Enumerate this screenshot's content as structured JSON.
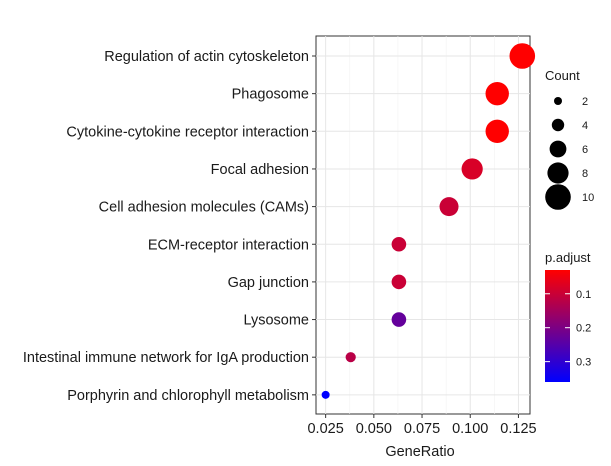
{
  "chart_data": {
    "type": "scatter",
    "title": "",
    "xlabel": "GeneRatio",
    "ylabel": "",
    "xlim": [
      0.02,
      0.131
    ],
    "x_ticks": [
      0.025,
      0.05,
      0.075,
      0.1,
      0.125
    ],
    "x_tick_labels": [
      "0.025",
      "0.050",
      "0.075",
      "0.100",
      "0.125"
    ],
    "grid": true,
    "legend_placement": "right",
    "categories": [
      "Regulation of actin cytoskeleton",
      "Phagosome",
      "Cytokine-cytokine receptor interaction",
      "Focal adhesion",
      "Cell adhesion molecules (CAMs)",
      "ECM-receptor interaction",
      "Gap junction",
      "Lysosome",
      "Intestinal immune network for IgA production",
      "Porphyrin and chlorophyll metabolism"
    ],
    "points": [
      {
        "category": "Regulation of actin cytoskeleton",
        "gene_ratio": 0.127,
        "count": 10,
        "p_adjust": 0.03
      },
      {
        "category": "Phagosome",
        "gene_ratio": 0.114,
        "count": 9,
        "p_adjust": 0.03
      },
      {
        "category": "Cytokine-cytokine receptor interaction",
        "gene_ratio": 0.114,
        "count": 9,
        "p_adjust": 0.03
      },
      {
        "category": "Focal adhesion",
        "gene_ratio": 0.101,
        "count": 8,
        "p_adjust": 0.08
      },
      {
        "category": "Cell adhesion molecules (CAMs)",
        "gene_ratio": 0.089,
        "count": 7,
        "p_adjust": 0.1
      },
      {
        "category": "ECM-receptor interaction",
        "gene_ratio": 0.063,
        "count": 5,
        "p_adjust": 0.1
      },
      {
        "category": "Gap junction",
        "gene_ratio": 0.063,
        "count": 5,
        "p_adjust": 0.1
      },
      {
        "category": "Lysosome",
        "gene_ratio": 0.063,
        "count": 5,
        "p_adjust": 0.23
      },
      {
        "category": "Intestinal immune network for IgA production",
        "gene_ratio": 0.038,
        "count": 3,
        "p_adjust": 0.12
      },
      {
        "category": "Porphyrin and chlorophyll metabolism",
        "gene_ratio": 0.025,
        "count": 2,
        "p_adjust": 0.36
      }
    ],
    "size_legend": {
      "title": "Count",
      "values": [
        2,
        4,
        6,
        8,
        10
      ],
      "labels": [
        "2",
        "4",
        "6",
        "8",
        "10"
      ]
    },
    "color_legend": {
      "title": "p.adjust",
      "range": [
        0.03,
        0.36
      ],
      "ticks": [
        0.1,
        0.2,
        0.3
      ],
      "tick_labels": [
        "0.1",
        "0.2",
        "0.3"
      ],
      "low_color": "#ff0000",
      "high_color": "#0000ff"
    }
  }
}
